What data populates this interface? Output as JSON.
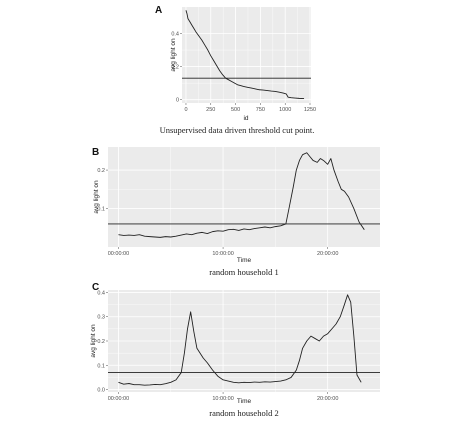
{
  "chart_data": [
    {
      "id": "A",
      "panel_label": "A",
      "type": "line",
      "caption": "Unsupervised data driven threshold cut point.",
      "xlabel": "id",
      "ylabel": "avg light on",
      "xlim": [
        -40,
        1260
      ],
      "ylim": [
        -0.02,
        0.56
      ],
      "x_ticks": [
        0,
        250,
        500,
        750,
        1000,
        1250
      ],
      "x_tick_labels": [
        "0",
        "250",
        "500",
        "750",
        "1000",
        "1250"
      ],
      "y_ticks": [
        0.0,
        0.2,
        0.4
      ],
      "y_tick_labels": [
        "0",
        "0.2",
        "0.4"
      ],
      "threshold": 0.13,
      "series": [
        {
          "x": [
            0,
            10,
            20,
            40,
            60,
            80,
            100,
            130,
            160,
            190,
            220,
            250,
            280,
            310,
            340,
            370,
            400,
            430,
            460,
            490,
            520,
            550,
            580,
            620,
            660,
            700,
            740,
            780,
            820,
            860,
            900,
            940,
            980,
            1010,
            1030,
            1060,
            1100,
            1140,
            1190
          ],
          "y": [
            0.54,
            0.52,
            0.49,
            0.47,
            0.45,
            0.43,
            0.41,
            0.385,
            0.36,
            0.33,
            0.3,
            0.265,
            0.235,
            0.205,
            0.175,
            0.15,
            0.13,
            0.12,
            0.11,
            0.1,
            0.09,
            0.085,
            0.08,
            0.075,
            0.07,
            0.065,
            0.06,
            0.058,
            0.055,
            0.052,
            0.05,
            0.045,
            0.04,
            0.035,
            0.015,
            0.012,
            0.01,
            0.008,
            0.007
          ]
        }
      ]
    },
    {
      "id": "B",
      "panel_label": "B",
      "type": "line",
      "caption": "random household 1",
      "xlabel": "Time",
      "ylabel": "avg light on",
      "xlim": [
        -1,
        25
      ],
      "ylim": [
        0.0,
        0.26
      ],
      "x_ticks": [
        0,
        10,
        20
      ],
      "x_tick_labels": [
        "00:00:00",
        "10:00:00",
        "20:00:00"
      ],
      "y_ticks": [
        0.1,
        0.2
      ],
      "y_tick_labels": [
        "0.1",
        "0.2"
      ],
      "threshold": 0.06,
      "series": [
        {
          "x": [
            0,
            0.5,
            1,
            1.5,
            2,
            2.5,
            3,
            3.5,
            4,
            4.5,
            5,
            5.5,
            6,
            6.5,
            7,
            7.5,
            8,
            8.5,
            9,
            9.5,
            10,
            10.5,
            11,
            11.5,
            12,
            12.5,
            13,
            13.5,
            14,
            14.5,
            15,
            15.5,
            16,
            16.3,
            16.7,
            17,
            17.3,
            17.6,
            18,
            18.3,
            18.6,
            19,
            19.3,
            19.6,
            20,
            20.3,
            20.6,
            21,
            21.3,
            21.6,
            22,
            22.5,
            23,
            23.5
          ],
          "y": [
            0.032,
            0.03,
            0.031,
            0.03,
            0.032,
            0.028,
            0.027,
            0.026,
            0.025,
            0.027,
            0.026,
            0.028,
            0.031,
            0.034,
            0.032,
            0.036,
            0.038,
            0.035,
            0.04,
            0.042,
            0.041,
            0.045,
            0.046,
            0.043,
            0.047,
            0.045,
            0.048,
            0.05,
            0.052,
            0.05,
            0.053,
            0.055,
            0.06,
            0.1,
            0.155,
            0.2,
            0.225,
            0.24,
            0.245,
            0.235,
            0.225,
            0.22,
            0.23,
            0.225,
            0.215,
            0.23,
            0.2,
            0.17,
            0.15,
            0.145,
            0.13,
            0.1,
            0.065,
            0.045
          ]
        }
      ]
    },
    {
      "id": "C",
      "panel_label": "C",
      "type": "line",
      "caption": "random household 2",
      "xlabel": "Time",
      "ylabel": "avg light on",
      "xlim": [
        -1,
        25
      ],
      "ylim": [
        -0.01,
        0.41
      ],
      "x_ticks": [
        0,
        10,
        20
      ],
      "x_tick_labels": [
        "00:00:00",
        "10:00:00",
        "20:00:00"
      ],
      "y_ticks": [
        0.0,
        0.1,
        0.2,
        0.3,
        0.4
      ],
      "y_tick_labels": [
        "0.0",
        "0.1",
        "0.2",
        "0.3",
        "0.4"
      ],
      "threshold": 0.07,
      "series": [
        {
          "x": [
            0,
            0.5,
            1,
            1.5,
            2,
            2.5,
            3,
            3.5,
            4,
            4.5,
            5,
            5.5,
            6,
            6.3,
            6.6,
            6.9,
            7.2,
            7.5,
            7.8,
            8.1,
            8.5,
            9,
            9.5,
            10,
            10.5,
            11,
            11.5,
            12,
            12.5,
            13,
            13.5,
            14,
            14.5,
            15,
            15.5,
            16,
            16.5,
            17,
            17.3,
            17.6,
            18,
            18.4,
            18.8,
            19.2,
            19.6,
            20,
            20.4,
            20.8,
            21.2,
            21.6,
            21.9,
            22.2,
            22.5,
            22.8,
            23.2
          ],
          "y": [
            0.03,
            0.022,
            0.025,
            0.02,
            0.02,
            0.018,
            0.019,
            0.021,
            0.02,
            0.024,
            0.03,
            0.04,
            0.07,
            0.15,
            0.25,
            0.32,
            0.24,
            0.17,
            0.15,
            0.13,
            0.11,
            0.08,
            0.055,
            0.04,
            0.035,
            0.03,
            0.028,
            0.03,
            0.029,
            0.031,
            0.03,
            0.032,
            0.031,
            0.033,
            0.035,
            0.04,
            0.05,
            0.08,
            0.12,
            0.17,
            0.2,
            0.22,
            0.21,
            0.2,
            0.22,
            0.23,
            0.25,
            0.27,
            0.3,
            0.35,
            0.39,
            0.36,
            0.22,
            0.06,
            0.03
          ]
        }
      ]
    }
  ]
}
